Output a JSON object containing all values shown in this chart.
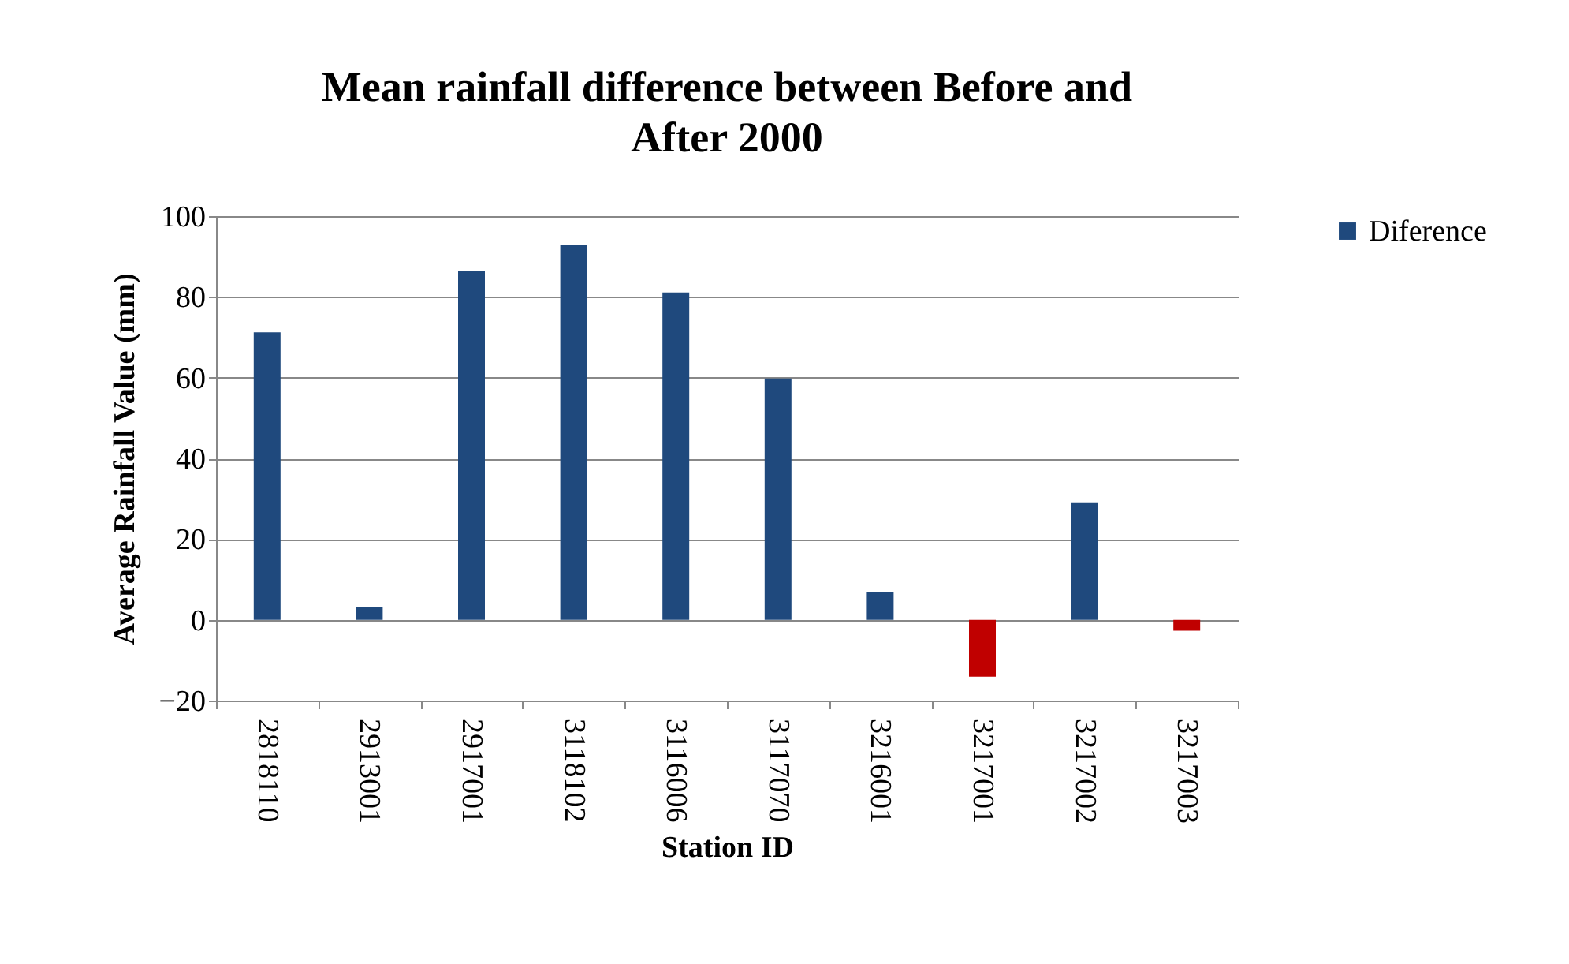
{
  "chart_data": {
    "type": "bar",
    "title": "Mean rainfall difference between Before and After 2000",
    "xlabel": "Station ID",
    "ylabel": "Average Rainfall Value (mm)",
    "categories": [
      "2818110",
      "2913001",
      "2917001",
      "3118102",
      "3116006",
      "3117070",
      "3216001",
      "3217001",
      "3217002",
      "3217003"
    ],
    "series": [
      {
        "name": "Diference",
        "color": "#1f497d",
        "colors": [
          "#1f497d",
          "#1f497d",
          "#1f497d",
          "#1f497d",
          "#1f497d",
          "#1f497d",
          "#1f497d",
          "#c00000",
          "#1f497d",
          "#c00000"
        ],
        "values": [
          71.2,
          3.1,
          86.5,
          92.9,
          81.1,
          59.8,
          6.8,
          -14.1,
          29.1,
          -2.7
        ]
      }
    ],
    "ylim": [
      -20,
      100
    ],
    "yticks": [
      -20,
      0,
      20,
      40,
      60,
      80,
      100
    ],
    "grid": "y",
    "legend": "right"
  }
}
